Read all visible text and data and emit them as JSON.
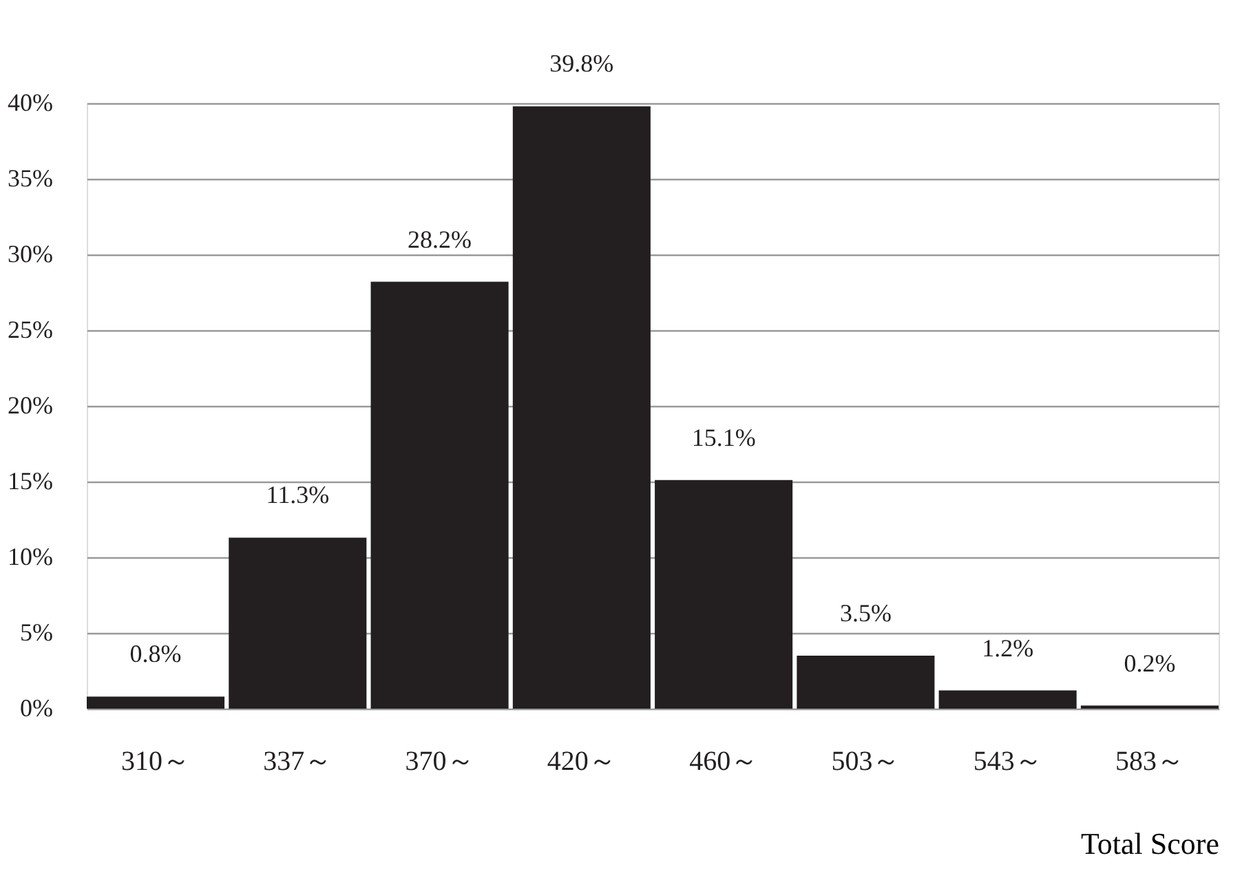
{
  "chart_data": {
    "type": "bar",
    "categories": [
      "310～",
      "337～",
      "370～",
      "420～",
      "460～",
      "503～",
      "543～",
      "583～"
    ],
    "values": [
      0.8,
      11.3,
      28.2,
      39.8,
      15.1,
      3.5,
      1.2,
      0.2
    ],
    "value_labels": [
      "0.8%",
      "11.3%",
      "28.2%",
      "39.8%",
      "15.1%",
      "3.5%",
      "1.2%",
      "0.2%"
    ],
    "color": "#231f20",
    "xlabel": "Total Score",
    "ylim": [
      0,
      40
    ],
    "yticks": [
      {
        "value": 0,
        "label": "0%"
      },
      {
        "value": 5,
        "label": "5%"
      },
      {
        "value": 10,
        "label": "10%"
      },
      {
        "value": 15,
        "label": "15%"
      },
      {
        "value": 20,
        "label": "20%"
      },
      {
        "value": 25,
        "label": "25%"
      },
      {
        "value": 30,
        "label": "30%"
      },
      {
        "value": 35,
        "label": "35%"
      },
      {
        "value": 40,
        "label": "40%"
      }
    ],
    "grid": "y"
  }
}
